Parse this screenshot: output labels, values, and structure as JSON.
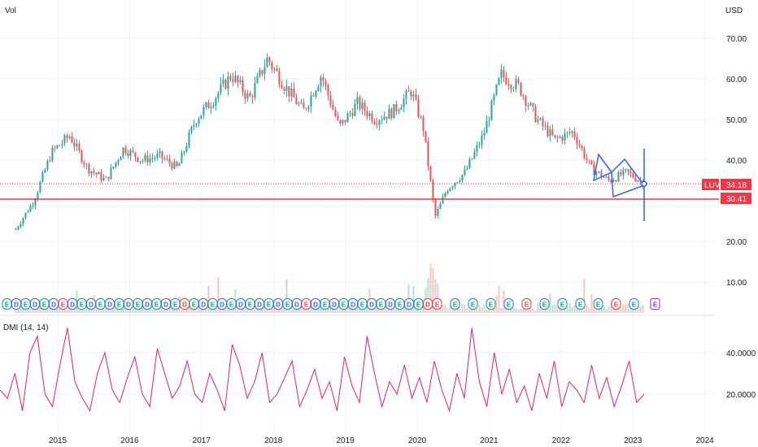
{
  "header": {
    "volume_label": "Vol",
    "currency": "USD",
    "indicator_label": "DMI (14, 14)"
  },
  "colors": {
    "up": "#26a69a",
    "down": "#ef5350",
    "support_line": "#f23645",
    "pattern": "#2962ff",
    "dmi_line": "#e91e63",
    "grid": "#f0f3fa",
    "earnings_label": "#2962ff",
    "event_green": "#089981",
    "event_red": "#f23645",
    "event_purple": "#9c27b0"
  },
  "price_tags": [
    {
      "symbol": "LUV",
      "value": "34.18"
    },
    {
      "symbol": "",
      "value": "30.41"
    }
  ],
  "chart_data": [
    {
      "type": "candlestick",
      "title": "",
      "xlabel": "",
      "ylabel": "USD",
      "x_ticks": [
        "2015",
        "2016",
        "2017",
        "2018",
        "2019",
        "2020",
        "2021",
        "2022",
        "2023",
        "2024"
      ],
      "y_ticks": [
        "10.00",
        "20.00",
        "30.00",
        "40.00",
        "50.00",
        "60.00",
        "70.00"
      ],
      "ylim": [
        3,
        75
      ],
      "grid": true,
      "x": [
        "2014-06",
        "2014-09",
        "2014-12",
        "2015-03",
        "2015-06",
        "2015-09",
        "2015-12",
        "2016-03",
        "2016-06",
        "2016-09",
        "2016-12",
        "2017-03",
        "2017-06",
        "2017-09",
        "2017-12",
        "2018-03",
        "2018-06",
        "2018-09",
        "2018-12",
        "2019-03",
        "2019-06",
        "2019-09",
        "2019-12",
        "2020-02",
        "2020-04",
        "2020-06",
        "2020-09",
        "2020-12",
        "2021-03",
        "2021-06",
        "2021-09",
        "2021-12",
        "2022-03",
        "2022-06",
        "2022-09",
        "2022-12",
        "2023-03"
      ],
      "close": [
        23,
        30,
        42,
        46,
        38,
        35,
        43,
        40,
        41,
        38,
        50,
        55,
        61,
        55,
        65,
        58,
        52,
        61,
        48,
        54,
        50,
        52,
        57,
        48,
        26,
        33,
        37,
        46,
        61,
        58,
        50,
        45,
        47,
        38,
        35,
        37,
        34.18
      ],
      "last_price": 34.18,
      "horizontal_line": 30.41,
      "events_row_height": 4.5,
      "events": [
        {
          "label": "E",
          "kind": "earnings"
        },
        {
          "label": "D",
          "kind": "dividend"
        }
      ],
      "volume_peak_year": "2020"
    },
    {
      "type": "line",
      "title": "DMI (14, 14)",
      "y_ticks": [
        "20.0000",
        "40.0000"
      ],
      "ylim": [
        8,
        58
      ],
      "series": [
        {
          "name": "",
          "values": [
            22,
            18,
            30,
            12,
            40,
            48,
            20,
            14,
            34,
            52,
            26,
            18,
            12,
            30,
            40,
            22,
            16,
            28,
            38,
            20,
            14,
            42,
            30,
            18,
            24,
            36,
            20,
            16,
            30,
            22,
            12,
            44,
            34,
            18,
            26,
            40,
            16,
            20,
            28,
            36,
            14,
            22,
            32,
            18,
            26,
            12,
            38,
            24,
            16,
            48,
            30,
            14,
            26,
            20,
            34,
            18,
            28,
            16,
            36,
            22,
            12,
            30,
            18,
            52,
            26,
            14,
            40,
            20,
            32,
            16,
            24,
            12,
            30,
            18,
            36,
            14,
            26,
            22,
            16,
            34,
            18,
            28,
            14,
            24,
            36,
            16,
            20
          ]
        }
      ]
    }
  ]
}
